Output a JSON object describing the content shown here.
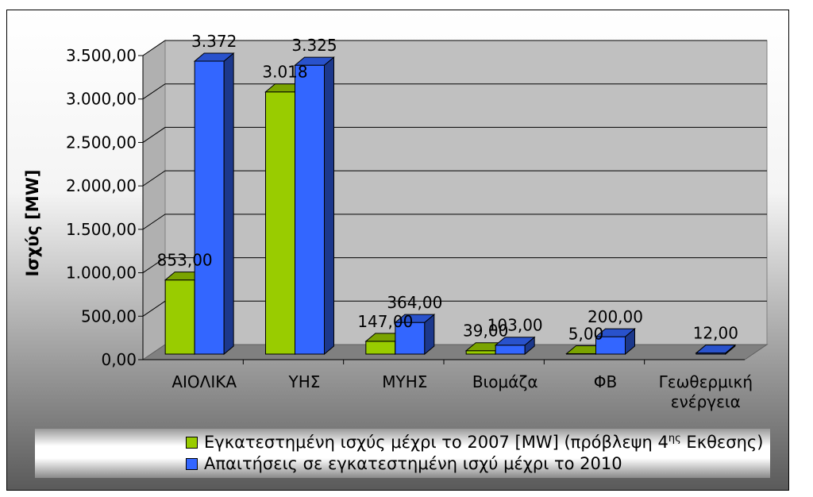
{
  "chart_data": {
    "type": "bar",
    "ylabel": "Ισχύς [MW]",
    "ylim": [
      0,
      3500
    ],
    "yticks": [
      "0,00",
      "500,00",
      "1.000,00",
      "1.500,00",
      "2.000,00",
      "2.500,00",
      "3.000,00",
      "3.500,00"
    ],
    "categories": [
      [
        "ΑΙΟΛΙΚΑ"
      ],
      [
        "ΥΗΣ"
      ],
      [
        "ΜΥΗΣ"
      ],
      [
        "Βιομάζα"
      ],
      [
        "ΦΒ"
      ],
      [
        "Γεωθερμική",
        "ενέργεια"
      ]
    ],
    "series": [
      {
        "name": "Εγκατεστημένη ισχύς μέχρι το 2007 [MW] (πρόβλεψη 4ης Εκθεσης)",
        "color": "#99CC00",
        "values": [
          853,
          3018,
          147,
          39,
          5,
          null
        ],
        "labels": [
          "853,00",
          "3.018",
          "147,00",
          "39,00",
          "5,00",
          null
        ]
      },
      {
        "name": "Απαιτήσεις σε εγκατεστημένη ισχύ μέχρι το 2010",
        "color": "#3366FF",
        "values": [
          3372,
          3325,
          364,
          103,
          200,
          12
        ],
        "labels": [
          "3.372",
          "3.325",
          "364,00",
          "103,00",
          "200,00",
          "12,00"
        ]
      }
    ],
    "grid": true,
    "legend_position": "bottom",
    "style": "3d-clustered-column"
  },
  "legend": {
    "items": [
      {
        "prefix": "Εγκατεστημένη ισχύς μέχρι το 2007 [MW] (πρόβλεψη 4",
        "sup": "ης",
        "suffix": " Εκθεσης)",
        "color": "#99CC00"
      },
      {
        "prefix": "Απαιτήσεις σε εγκατεστημένη ισχύ μέχρι το 2010",
        "sup": "",
        "suffix": "",
        "color": "#3366FF"
      }
    ]
  }
}
